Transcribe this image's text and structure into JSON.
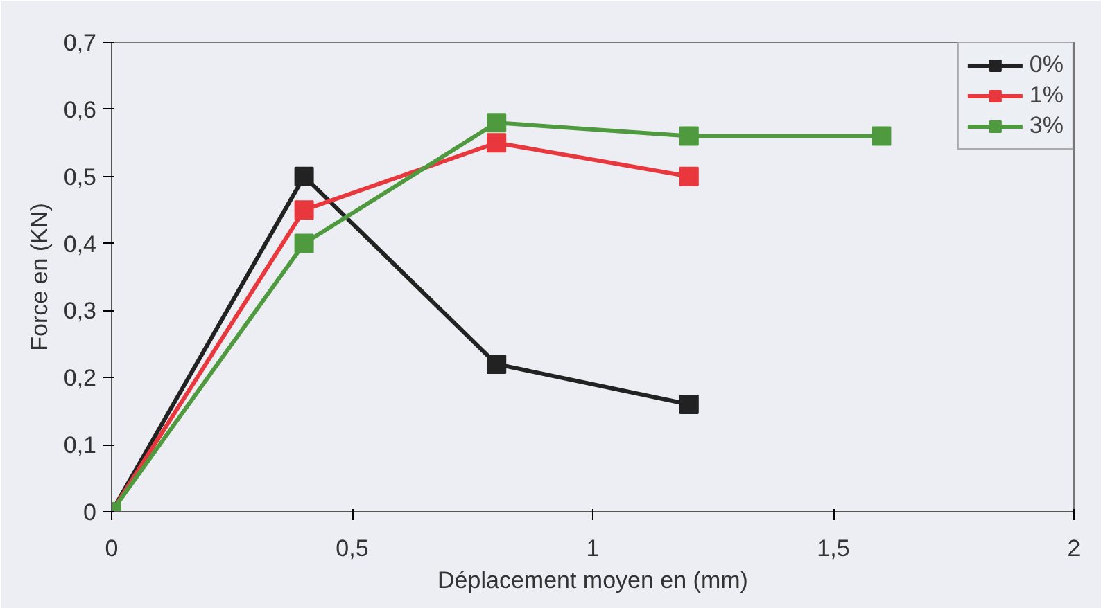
{
  "chart_data": {
    "type": "line",
    "xlabel": "Déplacement moyen en (mm)",
    "ylabel": "Force en (KN)",
    "xlim": [
      0,
      2
    ],
    "xticks": [
      0,
      {
        "value": 0.5,
        "label": "0,5"
      },
      1,
      {
        "value": 1.5,
        "label": "1,5"
      },
      2
    ],
    "ylim": [
      0,
      0.7
    ],
    "yticks": [
      0,
      {
        "value": 0.1,
        "label": "0,1"
      },
      {
        "value": 0.2,
        "label": "0,2"
      },
      {
        "value": 0.3,
        "label": "0,3"
      },
      {
        "value": 0.4,
        "label": "0,4"
      },
      {
        "value": 0.5,
        "label": "0,5"
      },
      {
        "value": 0.6,
        "label": "0,6"
      },
      {
        "value": 0.7,
        "label": "0,7"
      }
    ],
    "series": [
      {
        "name": "0%",
        "color": "#222222",
        "x": [
          0,
          0.4,
          0.8,
          1.2
        ],
        "values": [
          0,
          0.5,
          0.22,
          0.16
        ]
      },
      {
        "name": "1%",
        "color": "#e8383d",
        "x": [
          0,
          0.4,
          0.8,
          1.2
        ],
        "values": [
          0,
          0.45,
          0.55,
          0.5
        ]
      },
      {
        "name": "3%",
        "color": "#4f9a3f",
        "x": [
          0,
          0.4,
          0.8,
          1.2,
          1.6
        ],
        "values": [
          0,
          0.4,
          0.58,
          0.56,
          0.56
        ]
      }
    ],
    "marker": "square",
    "line_style": "solid",
    "grid": false,
    "legend": "top right"
  }
}
